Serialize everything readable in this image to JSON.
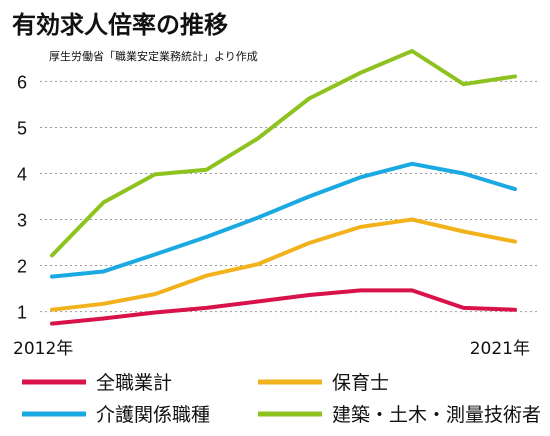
{
  "chart_data": {
    "type": "line",
    "title": "有効求人倍率の推移",
    "subtitle": "厚生労働省「職業安定業務統計」より作成",
    "x": [
      2012,
      2013,
      2014,
      2015,
      2016,
      2017,
      2018,
      2019,
      2020,
      2021
    ],
    "x_labels": {
      "first": "2012年",
      "last": "2021年"
    },
    "ylim": [
      0.6,
      6.9
    ],
    "yticks": [
      1,
      2,
      3,
      4,
      5,
      6
    ],
    "grid": true,
    "legend_position": "bottom",
    "series": [
      {
        "name": "全職業計",
        "color": "#d9124a",
        "values": [
          0.74,
          0.85,
          0.98,
          1.08,
          1.22,
          1.36,
          1.46,
          1.46,
          1.08,
          1.04
        ]
      },
      {
        "name": "保育士",
        "color": "#f2b21b",
        "values": [
          1.04,
          1.17,
          1.38,
          1.78,
          2.03,
          2.49,
          2.84,
          3.0,
          2.74,
          2.52
        ]
      },
      {
        "name": "介護関係職種",
        "color": "#1aa9e1",
        "values": [
          1.76,
          1.87,
          2.24,
          2.62,
          3.04,
          3.5,
          3.92,
          4.21,
          4.0,
          3.66
        ]
      },
      {
        "name": "建築・土木・測量技術者",
        "color": "#8dc21f",
        "values": [
          2.22,
          3.37,
          3.98,
          4.08,
          4.76,
          5.63,
          6.19,
          6.66,
          5.94,
          6.11
        ]
      }
    ]
  }
}
